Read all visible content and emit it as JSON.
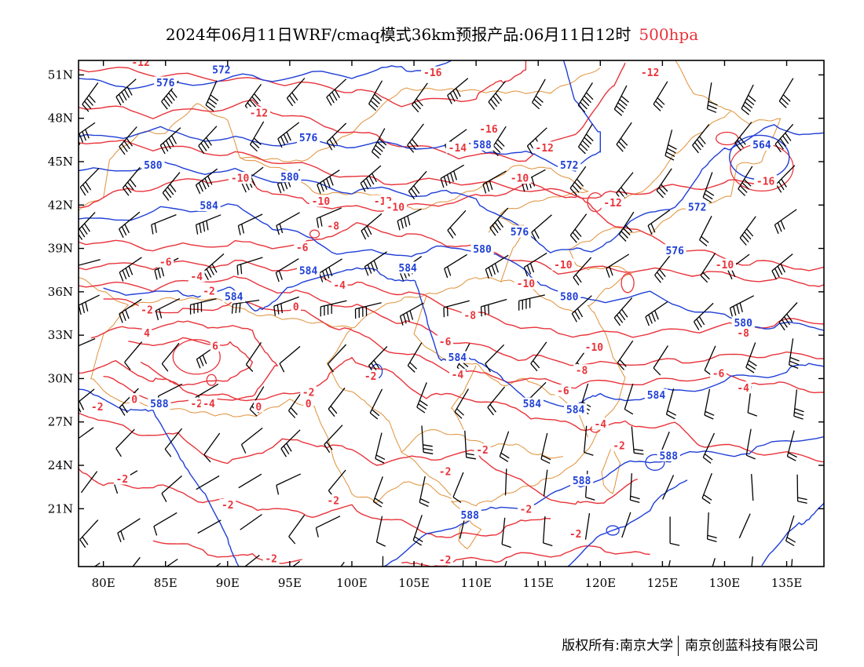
{
  "title": {
    "main": "2024年06月11日WRF/cmaq模式36km预报产品:06月11日12时",
    "level": "500hpa",
    "level_color": "#e8333a"
  },
  "colors": {
    "height_contour": "#1f3fd6",
    "temperature_contour": "#e8333a",
    "boundary": "#e0913a",
    "wind_barb": "#000000"
  },
  "map": {
    "lon_range": [
      78,
      138
    ],
    "lat_range": [
      17,
      52
    ],
    "lat_ticks": [
      "51N",
      "48N",
      "45N",
      "42N",
      "39N",
      "36N",
      "33N",
      "30N",
      "27N",
      "24N",
      "21N"
    ],
    "lon_ticks": [
      "80E",
      "85E",
      "90E",
      "95E",
      "100E",
      "105E",
      "110E",
      "115E",
      "120E",
      "125E",
      "130E",
      "135E"
    ],
    "height_labels": [
      {
        "text": "576",
        "lon": 85,
        "lat": 50.4
      },
      {
        "text": "572",
        "lon": 89.5,
        "lat": 51.3
      },
      {
        "text": "576",
        "lon": 96.5,
        "lat": 46.6
      },
      {
        "text": "580",
        "lon": 84,
        "lat": 44.7
      },
      {
        "text": "580",
        "lon": 95,
        "lat": 43.9
      },
      {
        "text": "584",
        "lon": 88.5,
        "lat": 41.9
      },
      {
        "text": "584",
        "lon": 96.5,
        "lat": 37.4
      },
      {
        "text": "584",
        "lon": 104.5,
        "lat": 37.6
      },
      {
        "text": "584",
        "lon": 90.5,
        "lat": 35.6
      },
      {
        "text": "588",
        "lon": 84.5,
        "lat": 28.2
      },
      {
        "text": "584",
        "lon": 108.5,
        "lat": 31.4
      },
      {
        "text": "584",
        "lon": 114.5,
        "lat": 28.2
      },
      {
        "text": "584",
        "lon": 118,
        "lat": 27.8
      },
      {
        "text": "584",
        "lon": 124.5,
        "lat": 28.8
      },
      {
        "text": "588",
        "lon": 110.5,
        "lat": 46.1
      },
      {
        "text": "572",
        "lon": 117.5,
        "lat": 44.7
      },
      {
        "text": "576",
        "lon": 113.5,
        "lat": 40.1
      },
      {
        "text": "580",
        "lon": 110.5,
        "lat": 38.9
      },
      {
        "text": "580",
        "lon": 117.5,
        "lat": 35.6
      },
      {
        "text": "576",
        "lon": 126,
        "lat": 38.8
      },
      {
        "text": "572",
        "lon": 127.8,
        "lat": 41.8
      },
      {
        "text": "564",
        "lon": 133,
        "lat": 46.1
      },
      {
        "text": "588",
        "lon": 109.5,
        "lat": 20.5
      },
      {
        "text": "588",
        "lon": 118.5,
        "lat": 22.9
      },
      {
        "text": "588",
        "lon": 125.5,
        "lat": 24.6
      },
      {
        "text": "580",
        "lon": 131.5,
        "lat": 33.8
      }
    ],
    "temperature_labels": [
      {
        "text": "-12",
        "lon": 83,
        "lat": 51.8
      },
      {
        "text": "-12",
        "lon": 92.5,
        "lat": 48.3
      },
      {
        "text": "-16",
        "lon": 106.5,
        "lat": 51.1
      },
      {
        "text": "-16",
        "lon": 111,
        "lat": 47.2
      },
      {
        "text": "-14",
        "lon": 108.5,
        "lat": 45.9
      },
      {
        "text": "-12",
        "lon": 115.5,
        "lat": 45.9
      },
      {
        "text": "-12",
        "lon": 124,
        "lat": 51.1
      },
      {
        "text": "-10",
        "lon": 91,
        "lat": 43.8
      },
      {
        "text": "-12",
        "lon": 102.5,
        "lat": 42.2
      },
      {
        "text": "-10",
        "lon": 97.5,
        "lat": 42.2
      },
      {
        "text": "-10",
        "lon": 103.5,
        "lat": 41.8
      },
      {
        "text": "-10",
        "lon": 113.5,
        "lat": 43.8
      },
      {
        "text": "-12",
        "lon": 121,
        "lat": 42.1
      },
      {
        "text": "-16",
        "lon": 133.3,
        "lat": 43.6
      },
      {
        "text": "-8",
        "lon": 98.5,
        "lat": 40.5
      },
      {
        "text": "-6",
        "lon": 96,
        "lat": 39
      },
      {
        "text": "-6",
        "lon": 85,
        "lat": 38
      },
      {
        "text": "-4",
        "lon": 87.5,
        "lat": 37
      },
      {
        "text": "-4",
        "lon": 99,
        "lat": 36.4
      },
      {
        "text": "-2",
        "lon": 88.5,
        "lat": 36
      },
      {
        "text": "-2",
        "lon": 83.5,
        "lat": 34.7
      },
      {
        "text": "0",
        "lon": 95.5,
        "lat": 34.9
      },
      {
        "text": "4",
        "lon": 83.5,
        "lat": 33.1
      },
      {
        "text": "6",
        "lon": 89,
        "lat": 32.2
      },
      {
        "text": "-10",
        "lon": 117,
        "lat": 37.8
      },
      {
        "text": "-10",
        "lon": 114,
        "lat": 36.5
      },
      {
        "text": "-10",
        "lon": 130,
        "lat": 37.8
      },
      {
        "text": "-8",
        "lon": 109.5,
        "lat": 34.3
      },
      {
        "text": "-6",
        "lon": 107.5,
        "lat": 32.5
      },
      {
        "text": "-10",
        "lon": 119.5,
        "lat": 32.1
      },
      {
        "text": "-8",
        "lon": 118.5,
        "lat": 30.5
      },
      {
        "text": "-8",
        "lon": 131.5,
        "lat": 33.1
      },
      {
        "text": "-6",
        "lon": 117,
        "lat": 29.1
      },
      {
        "text": "-6",
        "lon": 129.5,
        "lat": 30.3
      },
      {
        "text": "-4",
        "lon": 108.5,
        "lat": 30.2
      },
      {
        "text": "-4",
        "lon": 131.5,
        "lat": 29.3
      },
      {
        "text": "-2",
        "lon": 101.5,
        "lat": 30.1
      },
      {
        "text": "-2",
        "lon": 96.5,
        "lat": 29
      },
      {
        "text": "0",
        "lon": 96.5,
        "lat": 28.2
      },
      {
        "text": "-2",
        "lon": 79.5,
        "lat": 28
      },
      {
        "text": "0",
        "lon": 82.5,
        "lat": 28.5
      },
      {
        "text": "-2",
        "lon": 87.5,
        "lat": 28.2
      },
      {
        "text": "-4",
        "lon": 88.5,
        "lat": 28.2
      },
      {
        "text": "0",
        "lon": 92.5,
        "lat": 28
      },
      {
        "text": "-4",
        "lon": 120,
        "lat": 26.8
      },
      {
        "text": "-2",
        "lon": 121.5,
        "lat": 25.3
      },
      {
        "text": "-2",
        "lon": 110.5,
        "lat": 25
      },
      {
        "text": "-2",
        "lon": 107.5,
        "lat": 23.5
      },
      {
        "text": "-2",
        "lon": 81.5,
        "lat": 23
      },
      {
        "text": "-2",
        "lon": 90,
        "lat": 21.2
      },
      {
        "text": "-2",
        "lon": 98.5,
        "lat": 21.5
      },
      {
        "text": "-2",
        "lon": 114,
        "lat": 20.9
      },
      {
        "text": "-2",
        "lon": 118,
        "lat": 19.2
      },
      {
        "text": "-2",
        "lon": 93.5,
        "lat": 17.5
      },
      {
        "text": "-2",
        "lon": 107.5,
        "lat": 17.4
      }
    ]
  },
  "footer": {
    "copyright": "版权所有:南京大学",
    "company": "南京创蓝科技有限公司"
  }
}
